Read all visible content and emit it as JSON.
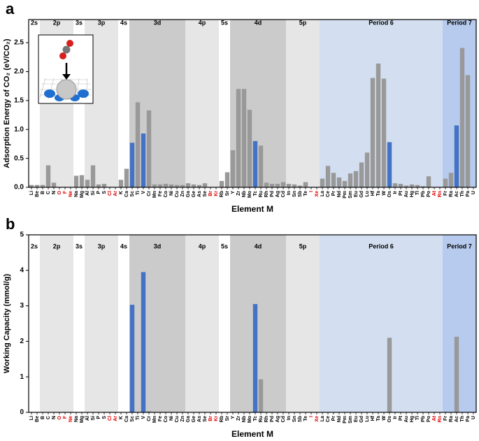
{
  "chart_data": [
    {
      "type": "bar",
      "panel_label": "a",
      "ylabel": "Adsorption Energy of CO₂ (eV/CO₂)",
      "xlabel": "Element M",
      "categories": [
        "Li",
        "Be",
        "B",
        "C",
        "N",
        "O",
        "F",
        "Ne",
        "Na",
        "Mg",
        "Al",
        "Si",
        "P",
        "S",
        "Cl",
        "Ar",
        "K",
        "Ca",
        "Sc",
        "Ti",
        "V",
        "Cr",
        "Mn",
        "Fe",
        "Co",
        "Ni",
        "Cu",
        "Zn",
        "Ga",
        "Ge",
        "As",
        "Se",
        "Br",
        "Kr",
        "Rb",
        "Sr",
        "Y",
        "Zr",
        "Nb",
        "Mo",
        "Tc",
        "Ru",
        "Rh",
        "Pd",
        "Ag",
        "Cd",
        "In",
        "Sn",
        "Sb",
        "Te",
        "I",
        "Xe",
        "La",
        "Ce",
        "Pr",
        "Nd",
        "Pm",
        "Sm",
        "Eu",
        "Gd",
        "Lu",
        "Hf",
        "Ta",
        "W",
        "Os",
        "Ir",
        "Pt",
        "Au",
        "Hg",
        "Tl",
        "Pb",
        "Po",
        "At",
        "Rn",
        "Fr",
        "Ra",
        "Ac",
        "Th",
        "Pa",
        "U"
      ],
      "category_colors": [
        "#000",
        "#000",
        "#000",
        "#000",
        "#000",
        "#e00000",
        "#e00000",
        "#e00000",
        "#000",
        "#000",
        "#000",
        "#000",
        "#000",
        "#000",
        "#e00000",
        "#e00000",
        "#000",
        "#000",
        "#000",
        "#000",
        "#000",
        "#000",
        "#000",
        "#000",
        "#000",
        "#000",
        "#000",
        "#000",
        "#000",
        "#000",
        "#000",
        "#000",
        "#e00000",
        "#e00000",
        "#000",
        "#000",
        "#000",
        "#000",
        "#000",
        "#000",
        "#000",
        "#000",
        "#000",
        "#000",
        "#000",
        "#000",
        "#000",
        "#000",
        "#000",
        "#000",
        "#e00000",
        "#e00000",
        "#000",
        "#000",
        "#000",
        "#000",
        "#000",
        "#000",
        "#000",
        "#000",
        "#000",
        "#000",
        "#000",
        "#000",
        "#000",
        "#000",
        "#000",
        "#000",
        "#000",
        "#000",
        "#000",
        "#000",
        "#e00000",
        "#e00000",
        "#000",
        "#000",
        "#000",
        "#000",
        "#000",
        "#000"
      ],
      "values": [
        0.04,
        0.04,
        0.04,
        0.38,
        0.08,
        null,
        null,
        null,
        0.2,
        0.21,
        0.13,
        0.38,
        0.05,
        0.06,
        null,
        null,
        0.13,
        0.32,
        0.77,
        1.47,
        0.93,
        1.33,
        0.05,
        0.05,
        0.06,
        0.05,
        0.04,
        0.04,
        0.07,
        0.05,
        0.04,
        0.07,
        null,
        null,
        0.11,
        0.26,
        0.64,
        1.7,
        1.7,
        1.34,
        0.8,
        0.72,
        0.08,
        0.06,
        0.06,
        0.09,
        0.06,
        0.05,
        0.03,
        0.09,
        null,
        null,
        0.15,
        0.37,
        0.25,
        0.17,
        0.11,
        0.24,
        0.28,
        0.43,
        0.6,
        1.89,
        2.14,
        1.88,
        0.78,
        0.07,
        0.06,
        0.03,
        0.05,
        0.04,
        0.02,
        0.19,
        null,
        null,
        0.15,
        0.25,
        1.07,
        2.41,
        1.94,
        null
      ],
      "bar_colors": [
        "#999",
        "#999",
        "#999",
        "#999",
        "#999",
        "#999",
        "#999",
        "#999",
        "#999",
        "#999",
        "#999",
        "#999",
        "#999",
        "#999",
        "#999",
        "#999",
        "#999",
        "#999",
        "#4472c4",
        "#999",
        "#4472c4",
        "#999",
        "#999",
        "#999",
        "#999",
        "#999",
        "#999",
        "#999",
        "#999",
        "#999",
        "#999",
        "#999",
        "#999",
        "#999",
        "#999",
        "#999",
        "#999",
        "#999",
        "#999",
        "#999",
        "#4472c4",
        "#999",
        "#999",
        "#999",
        "#999",
        "#999",
        "#999",
        "#999",
        "#999",
        "#999",
        "#999",
        "#999",
        "#999",
        "#999",
        "#999",
        "#999",
        "#999",
        "#999",
        "#999",
        "#999",
        "#999",
        "#999",
        "#999",
        "#999",
        "#4472c4",
        "#999",
        "#999",
        "#999",
        "#999",
        "#999",
        "#999",
        "#999",
        "#999",
        "#999",
        "#999",
        "#999",
        "#4472c4",
        "#999",
        "#999",
        "#999"
      ],
      "ylim": [
        0,
        2.9
      ],
      "yticks": [
        {
          "value": 0,
          "label": "0.0"
        },
        0.5,
        {
          "value": 1,
          "label": "1.0"
        },
        1.5,
        {
          "value": 2,
          "label": "2.0"
        },
        2.5
      ],
      "regions": [
        {
          "label": "2s",
          "from": "Li",
          "to": "Be",
          "color": "#ffffff"
        },
        {
          "label": "2p",
          "from": "B",
          "to": "Ne",
          "color": "#e6e6e6"
        },
        {
          "label": "3s",
          "from": "Na",
          "to": "Mg",
          "color": "#ffffff"
        },
        {
          "label": "3p",
          "from": "Al",
          "to": "Ar",
          "color": "#e6e6e6"
        },
        {
          "label": "4s",
          "from": "K",
          "to": "Ca",
          "color": "#ffffff"
        },
        {
          "label": "3d",
          "from": "Sc",
          "to": "Zn",
          "color": "#cbcbcb"
        },
        {
          "label": "4p",
          "from": "Ga",
          "to": "Kr",
          "color": "#e6e6e6"
        },
        {
          "label": "5s",
          "from": "Rb",
          "to": "Sr",
          "color": "#ffffff"
        },
        {
          "label": "4d",
          "from": "Y",
          "to": "Cd",
          "color": "#cbcbcb"
        },
        {
          "label": "5p",
          "from": "In",
          "to": "Xe",
          "color": "#e6e6e6"
        },
        {
          "label": "Period 6",
          "from": "La",
          "to": "Rn",
          "color": "#d3dff0"
        },
        {
          "label": "Period 7",
          "from": "Fr",
          "to": "U",
          "color": "#b7cbee"
        }
      ]
    },
    {
      "type": "bar",
      "panel_label": "b",
      "ylabel": "Working Capacity (mmol/g)",
      "xlabel": "Element M",
      "categories": [
        "Li",
        "Be",
        "B",
        "C",
        "N",
        "O",
        "F",
        "Ne",
        "Na",
        "Mg",
        "Al",
        "Si",
        "P",
        "S",
        "Cl",
        "Ar",
        "K",
        "Ca",
        "Sc",
        "Ti",
        "V",
        "Cr",
        "Mn",
        "Fe",
        "Co",
        "Ni",
        "Cu",
        "Zn",
        "Ga",
        "Ge",
        "As",
        "Se",
        "Br",
        "Kr",
        "Rb",
        "Sr",
        "Y",
        "Zr",
        "Nb",
        "Mo",
        "Tc",
        "Ru",
        "Rh",
        "Pd",
        "Ag",
        "Cd",
        "In",
        "Sn",
        "Sb",
        "Te",
        "I",
        "Xe",
        "La",
        "Ce",
        "Pr",
        "Nd",
        "Pm",
        "Sm",
        "Eu",
        "Gd",
        "Lu",
        "Hf",
        "Ta",
        "W",
        "Os",
        "Ir",
        "Pt",
        "Au",
        "Hg",
        "Tl",
        "Pb",
        "Po",
        "At",
        "Rn",
        "Fr",
        "Ra",
        "Ac",
        "Th",
        "Pa",
        "U"
      ],
      "category_colors": [
        "#000",
        "#000",
        "#000",
        "#000",
        "#000",
        "#e00000",
        "#e00000",
        "#e00000",
        "#000",
        "#000",
        "#000",
        "#000",
        "#000",
        "#000",
        "#e00000",
        "#e00000",
        "#000",
        "#000",
        "#000",
        "#000",
        "#000",
        "#000",
        "#000",
        "#000",
        "#000",
        "#000",
        "#000",
        "#000",
        "#000",
        "#000",
        "#000",
        "#000",
        "#e00000",
        "#e00000",
        "#000",
        "#000",
        "#000",
        "#000",
        "#000",
        "#000",
        "#000",
        "#000",
        "#000",
        "#000",
        "#000",
        "#000",
        "#000",
        "#000",
        "#000",
        "#000",
        "#e00000",
        "#e00000",
        "#000",
        "#000",
        "#000",
        "#000",
        "#000",
        "#000",
        "#000",
        "#000",
        "#000",
        "#000",
        "#000",
        "#000",
        "#000",
        "#000",
        "#000",
        "#000",
        "#000",
        "#000",
        "#000",
        "#000",
        "#e00000",
        "#e00000",
        "#000",
        "#000",
        "#000",
        "#000",
        "#000",
        "#000"
      ],
      "values": [
        0,
        0,
        0,
        0,
        0,
        null,
        null,
        null,
        0,
        0,
        0,
        0,
        0,
        0,
        null,
        null,
        0,
        0,
        3.03,
        0,
        3.95,
        0.03,
        0,
        0,
        0,
        0,
        0,
        0,
        0,
        0,
        0,
        0,
        null,
        null,
        0,
        0,
        0,
        0,
        0,
        0,
        3.05,
        0.93,
        0,
        0,
        0,
        0,
        0,
        0,
        0,
        0,
        null,
        null,
        0,
        0,
        0,
        0,
        0,
        0,
        0,
        0,
        0,
        0,
        0,
        0,
        2.1,
        0,
        0,
        0,
        0,
        0,
        0,
        0,
        null,
        null,
        0,
        0,
        2.13,
        0,
        0,
        null
      ],
      "bar_colors": [
        "#999",
        "#999",
        "#999",
        "#999",
        "#999",
        "#999",
        "#999",
        "#999",
        "#999",
        "#999",
        "#999",
        "#999",
        "#999",
        "#999",
        "#999",
        "#999",
        "#999",
        "#999",
        "#4472c4",
        "#999",
        "#4472c4",
        "#999",
        "#999",
        "#999",
        "#999",
        "#999",
        "#999",
        "#999",
        "#999",
        "#999",
        "#999",
        "#999",
        "#999",
        "#999",
        "#999",
        "#999",
        "#999",
        "#999",
        "#999",
        "#999",
        "#4472c4",
        "#999",
        "#999",
        "#999",
        "#999",
        "#999",
        "#999",
        "#999",
        "#999",
        "#999",
        "#999",
        "#999",
        "#999",
        "#999",
        "#999",
        "#999",
        "#999",
        "#999",
        "#999",
        "#999",
        "#999",
        "#999",
        "#999",
        "#999",
        "#999",
        "#999",
        "#999",
        "#999",
        "#999",
        "#999",
        "#999",
        "#999",
        "#999",
        "#999",
        "#999",
        "#999",
        "#999",
        "#999",
        "#999",
        "#999"
      ],
      "ylim": [
        0,
        5
      ],
      "yticks": [
        0,
        1,
        2,
        3,
        4,
        5
      ],
      "regions": [
        {
          "label": "2s",
          "from": "Li",
          "to": "Be",
          "color": "#ffffff"
        },
        {
          "label": "2p",
          "from": "B",
          "to": "Ne",
          "color": "#e6e6e6"
        },
        {
          "label": "3s",
          "from": "Na",
          "to": "Mg",
          "color": "#ffffff"
        },
        {
          "label": "3p",
          "from": "Al",
          "to": "Ar",
          "color": "#e6e6e6"
        },
        {
          "label": "4s",
          "from": "K",
          "to": "Ca",
          "color": "#ffffff"
        },
        {
          "label": "3d",
          "from": "Sc",
          "to": "Zn",
          "color": "#cbcbcb"
        },
        {
          "label": "4p",
          "from": "Ga",
          "to": "Kr",
          "color": "#e6e6e6"
        },
        {
          "label": "5s",
          "from": "Rb",
          "to": "Sr",
          "color": "#ffffff"
        },
        {
          "label": "4d",
          "from": "Y",
          "to": "Cd",
          "color": "#cbcbcb"
        },
        {
          "label": "5p",
          "from": "In",
          "to": "Xe",
          "color": "#e6e6e6"
        },
        {
          "label": "Period 6",
          "from": "La",
          "to": "Rn",
          "color": "#d3dff0"
        },
        {
          "label": "Period 7",
          "from": "Fr",
          "to": "U",
          "color": "#b7cbee"
        }
      ]
    }
  ]
}
